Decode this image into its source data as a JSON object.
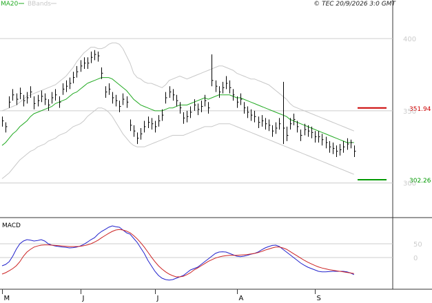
{
  "header": {
    "legend_ma": "MA20",
    "legend_bb": "BBands",
    "copyright": "© TEC 20/9/2026 3:0 GMT"
  },
  "colors": {
    "ma": "#22aa22",
    "bands": "#c8c8c8",
    "macd": "#2222cc",
    "signal": "#cc2222",
    "resistance": "#cc0000",
    "support": "#009900",
    "grid": "#cccccc",
    "price": "#000000"
  },
  "chart_data": [
    {
      "type": "ohlc",
      "title": "",
      "ylim": [
        277,
        420
      ],
      "y_ticks": [
        {
          "value": 400,
          "label": "400"
        },
        {
          "value": 350,
          "label": "350"
        },
        {
          "value": 300,
          "label": "300"
        }
      ],
      "x_month_labels": [
        {
          "index": 0,
          "label": "M"
        },
        {
          "index": 22,
          "label": "J"
        },
        {
          "index": 43,
          "label": "J"
        },
        {
          "index": 66,
          "label": "A"
        },
        {
          "index": 88,
          "label": "S"
        }
      ],
      "levels": [
        {
          "name": "resistance",
          "value": 351.94,
          "label": "351.94"
        },
        {
          "name": "support",
          "value": 302.26,
          "label": "302.26"
        }
      ],
      "close": [
        343,
        339,
        356,
        361,
        358,
        362,
        357,
        359,
        363,
        355,
        357,
        360,
        358,
        354,
        359,
        361,
        356,
        365,
        367,
        369,
        373,
        377,
        381,
        383,
        383,
        387,
        389,
        388,
        376,
        363,
        365,
        359,
        357,
        353,
        358,
        356,
        340,
        336,
        331,
        334,
        339,
        342,
        341,
        339,
        343,
        347,
        359,
        363,
        361,
        357,
        352,
        345,
        346,
        349,
        354,
        351,
        353,
        357,
        352,
        371,
        367,
        363,
        366,
        369,
        366,
        361,
        356,
        358,
        352,
        349,
        347,
        346,
        342,
        343,
        341,
        340,
        336,
        338,
        341,
        338,
        333,
        341,
        344,
        339,
        333,
        337,
        336,
        335,
        332,
        332,
        330,
        328,
        325,
        324,
        322,
        323,
        325,
        327,
        328,
        322
      ],
      "high": [
        346,
        342,
        360,
        365,
        362,
        366,
        361,
        363,
        367,
        360,
        361,
        364,
        362,
        358,
        363,
        365,
        360,
        369,
        371,
        373,
        377,
        381,
        385,
        387,
        387,
        391,
        392,
        391,
        380,
        367,
        369,
        363,
        361,
        357,
        362,
        360,
        344,
        340,
        335,
        338,
        343,
        346,
        345,
        343,
        347,
        351,
        363,
        367,
        365,
        361,
        356,
        349,
        350,
        353,
        358,
        355,
        357,
        361,
        356,
        389,
        371,
        367,
        370,
        374,
        371,
        365,
        360,
        362,
        356,
        353,
        351,
        350,
        346,
        347,
        345,
        344,
        340,
        342,
        345,
        370,
        339,
        345,
        348,
        343,
        337,
        341,
        340,
        339,
        336,
        336,
        334,
        332,
        329,
        328,
        326,
        327,
        329,
        331,
        330,
        326
      ],
      "low": [
        339,
        335,
        352,
        357,
        354,
        358,
        353,
        355,
        359,
        351,
        353,
        356,
        354,
        350,
        355,
        357,
        352,
        361,
        363,
        365,
        369,
        373,
        377,
        379,
        379,
        383,
        385,
        384,
        372,
        359,
        361,
        355,
        353,
        349,
        354,
        352,
        336,
        332,
        327,
        330,
        335,
        338,
        337,
        335,
        339,
        343,
        355,
        359,
        357,
        353,
        348,
        341,
        342,
        345,
        350,
        347,
        349,
        353,
        348,
        367,
        363,
        359,
        362,
        365,
        362,
        357,
        352,
        354,
        348,
        345,
        343,
        342,
        338,
        339,
        337,
        336,
        332,
        334,
        337,
        327,
        329,
        337,
        340,
        335,
        329,
        333,
        332,
        331,
        328,
        328,
        326,
        324,
        321,
        320,
        318,
        319,
        321,
        323,
        324,
        318
      ],
      "ma20": [
        326,
        328,
        331,
        334,
        336,
        339,
        341,
        343,
        346,
        348,
        349,
        350,
        351,
        352,
        353,
        355,
        356,
        357,
        358,
        360,
        362,
        363,
        365,
        367,
        369,
        370,
        371,
        372,
        373,
        373,
        373,
        372,
        370,
        368,
        366,
        364,
        361,
        358,
        356,
        354,
        353,
        352,
        351,
        350,
        350,
        350,
        351,
        352,
        352,
        353,
        354,
        354,
        354,
        355,
        356,
        357,
        358,
        359,
        358,
        359,
        360,
        361,
        361,
        361,
        361,
        360,
        359,
        359,
        358,
        357,
        356,
        355,
        354,
        353,
        352,
        351,
        350,
        349,
        348,
        347,
        346,
        344,
        343,
        342,
        341,
        340,
        339,
        338,
        337,
        336,
        335,
        334,
        333,
        332,
        331,
        330,
        329,
        328,
        328,
        328
      ],
      "bb_upper": [
        350,
        351,
        352,
        353,
        354,
        356,
        358,
        360,
        361,
        362,
        363,
        364,
        365,
        366,
        367,
        368,
        370,
        372,
        374,
        377,
        380,
        384,
        387,
        390,
        392,
        394,
        394,
        393,
        393,
        394,
        396,
        397,
        397,
        396,
        393,
        388,
        383,
        376,
        373,
        372,
        370,
        369,
        369,
        368,
        367,
        366,
        368,
        371,
        372,
        373,
        374,
        373,
        372,
        373,
        374,
        375,
        376,
        377,
        378,
        379,
        380,
        381,
        381,
        380,
        379,
        378,
        376,
        375,
        374,
        373,
        372,
        372,
        371,
        370,
        369,
        368,
        366,
        364,
        362,
        360,
        358,
        355,
        353,
        352,
        351,
        350,
        349,
        348,
        347,
        346,
        345,
        344,
        343,
        342,
        341,
        340,
        339,
        338,
        337,
        336
      ],
      "bb_lower": [
        303,
        305,
        307,
        310,
        313,
        316,
        318,
        320,
        322,
        323,
        325,
        326,
        327,
        329,
        330,
        331,
        333,
        334,
        335,
        337,
        339,
        340,
        341,
        343,
        346,
        348,
        350,
        352,
        352,
        351,
        349,
        346,
        342,
        338,
        334,
        331,
        328,
        326,
        325,
        325,
        325,
        326,
        327,
        328,
        329,
        330,
        331,
        332,
        333,
        333,
        333,
        333,
        334,
        335,
        336,
        337,
        338,
        339,
        339,
        339,
        340,
        341,
        341,
        341,
        341,
        340,
        339,
        338,
        337,
        336,
        335,
        334,
        333,
        332,
        331,
        330,
        329,
        328,
        327,
        326,
        325,
        324,
        323,
        322,
        321,
        320,
        319,
        318,
        317,
        316,
        315,
        314,
        313,
        312,
        311,
        310,
        309,
        308,
        307,
        306
      ]
    },
    {
      "type": "line",
      "title": "MACD",
      "ylim": [
        -110,
        130
      ],
      "y_ticks": [
        {
          "value": 50,
          "label": "50"
        },
        {
          "value": 0,
          "label": "0"
        }
      ],
      "series": [
        {
          "name": "MACD",
          "values": [
            -30,
            -25,
            -15,
            5,
            30,
            50,
            60,
            65,
            63,
            60,
            62,
            65,
            60,
            50,
            45,
            42,
            40,
            38,
            37,
            35,
            36,
            38,
            42,
            48,
            56,
            65,
            72,
            85,
            95,
            102,
            110,
            115,
            112,
            110,
            100,
            90,
            85,
            70,
            55,
            35,
            15,
            -10,
            -30,
            -50,
            -65,
            -75,
            -80,
            -82,
            -80,
            -75,
            -70,
            -65,
            -55,
            -45,
            -40,
            -35,
            -25,
            -15,
            -5,
            5,
            15,
            20,
            21,
            20,
            15,
            10,
            5,
            3,
            5,
            8,
            12,
            15,
            20,
            28,
            35,
            40,
            44,
            45,
            40,
            30,
            20,
            10,
            0,
            -10,
            -20,
            -28,
            -35,
            -40,
            -45,
            -50,
            -52,
            -52,
            -51,
            -50,
            -50,
            -50,
            -50,
            -52,
            -56,
            -62
          ]
        },
        {
          "name": "Signal",
          "values": [
            -60,
            -55,
            -48,
            -40,
            -30,
            -15,
            5,
            20,
            30,
            38,
            42,
            45,
            46,
            46,
            45,
            44,
            43,
            42,
            41,
            40,
            40,
            40,
            41,
            43,
            46,
            50,
            56,
            63,
            72,
            80,
            88,
            95,
            100,
            102,
            100,
            96,
            90,
            80,
            68,
            54,
            38,
            20,
            2,
            -15,
            -30,
            -42,
            -52,
            -60,
            -66,
            -70,
            -70,
            -68,
            -62,
            -55,
            -45,
            -38,
            -30,
            -22,
            -14,
            -8,
            -2,
            2,
            5,
            7,
            8,
            8,
            8,
            9,
            10,
            11,
            13,
            15,
            18,
            22,
            27,
            31,
            35,
            38,
            38,
            35,
            30,
            22,
            14,
            6,
            -2,
            -10,
            -17,
            -23,
            -29,
            -34,
            -38,
            -41,
            -44,
            -46,
            -48,
            -50,
            -52,
            -54,
            -56,
            -58
          ]
        }
      ]
    }
  ]
}
